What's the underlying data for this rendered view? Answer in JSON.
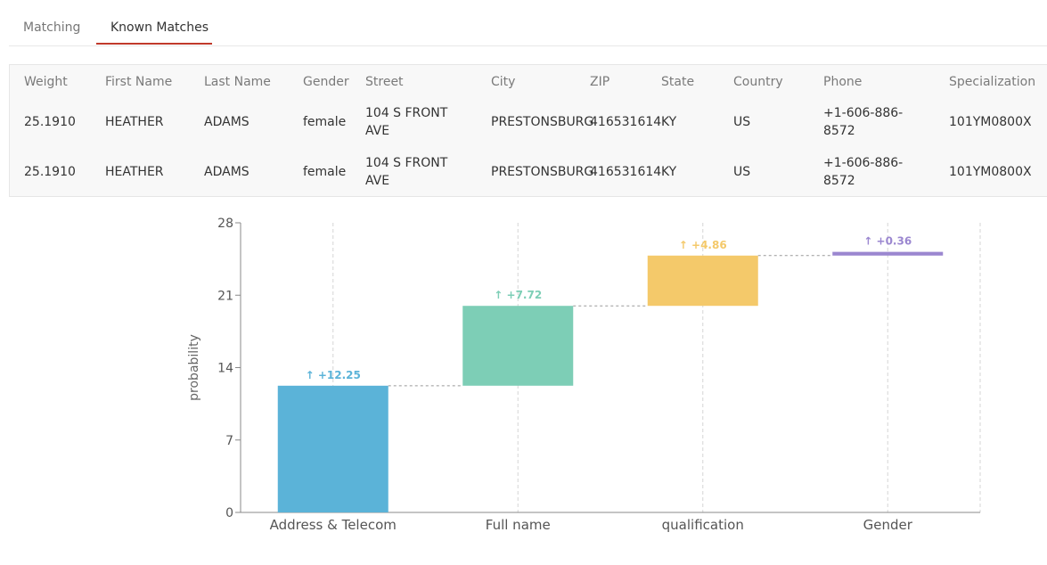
{
  "tabs": [
    {
      "label": "Matching",
      "active": false
    },
    {
      "label": "Known Matches",
      "active": true
    }
  ],
  "table": {
    "columns": [
      "Weight",
      "First Name",
      "Last Name",
      "Gender",
      "Street",
      "City",
      "ZIP",
      "State",
      "Country",
      "Phone",
      "Specialization"
    ],
    "rows": [
      [
        "25.1910",
        "HEATHER",
        "ADAMS",
        "female",
        "104 S FRONT AVE",
        "PRESTONSBURG",
        "416531614",
        "KY",
        "US",
        "+1-606-886-8572",
        "101YM0800X"
      ],
      [
        "25.1910",
        "HEATHER",
        "ADAMS",
        "female",
        "104 S FRONT AVE",
        "PRESTONSBURG",
        "416531614",
        "KY",
        "US",
        "+1-606-886-8572",
        "101YM0800X"
      ]
    ]
  },
  "chart_data": {
    "type": "bar",
    "subtype": "waterfall",
    "ylabel": "probability",
    "xlabel": "",
    "ylim": [
      0,
      28
    ],
    "yticks": [
      "0",
      "7",
      "14",
      "21",
      "28"
    ],
    "categories": [
      "Address & Telecom",
      "Full name",
      "qualification",
      "Gender"
    ],
    "values": [
      12.25,
      7.72,
      4.86,
      0.36
    ],
    "labels": [
      "+12.25",
      "+7.72",
      "+4.86",
      "+0.36"
    ],
    "colors": [
      "#5bb3d8",
      "#7dceb6",
      "#f4c96a",
      "#9b87d0"
    ],
    "grid": "vertical dashed",
    "arrow_glyph": "↑"
  }
}
